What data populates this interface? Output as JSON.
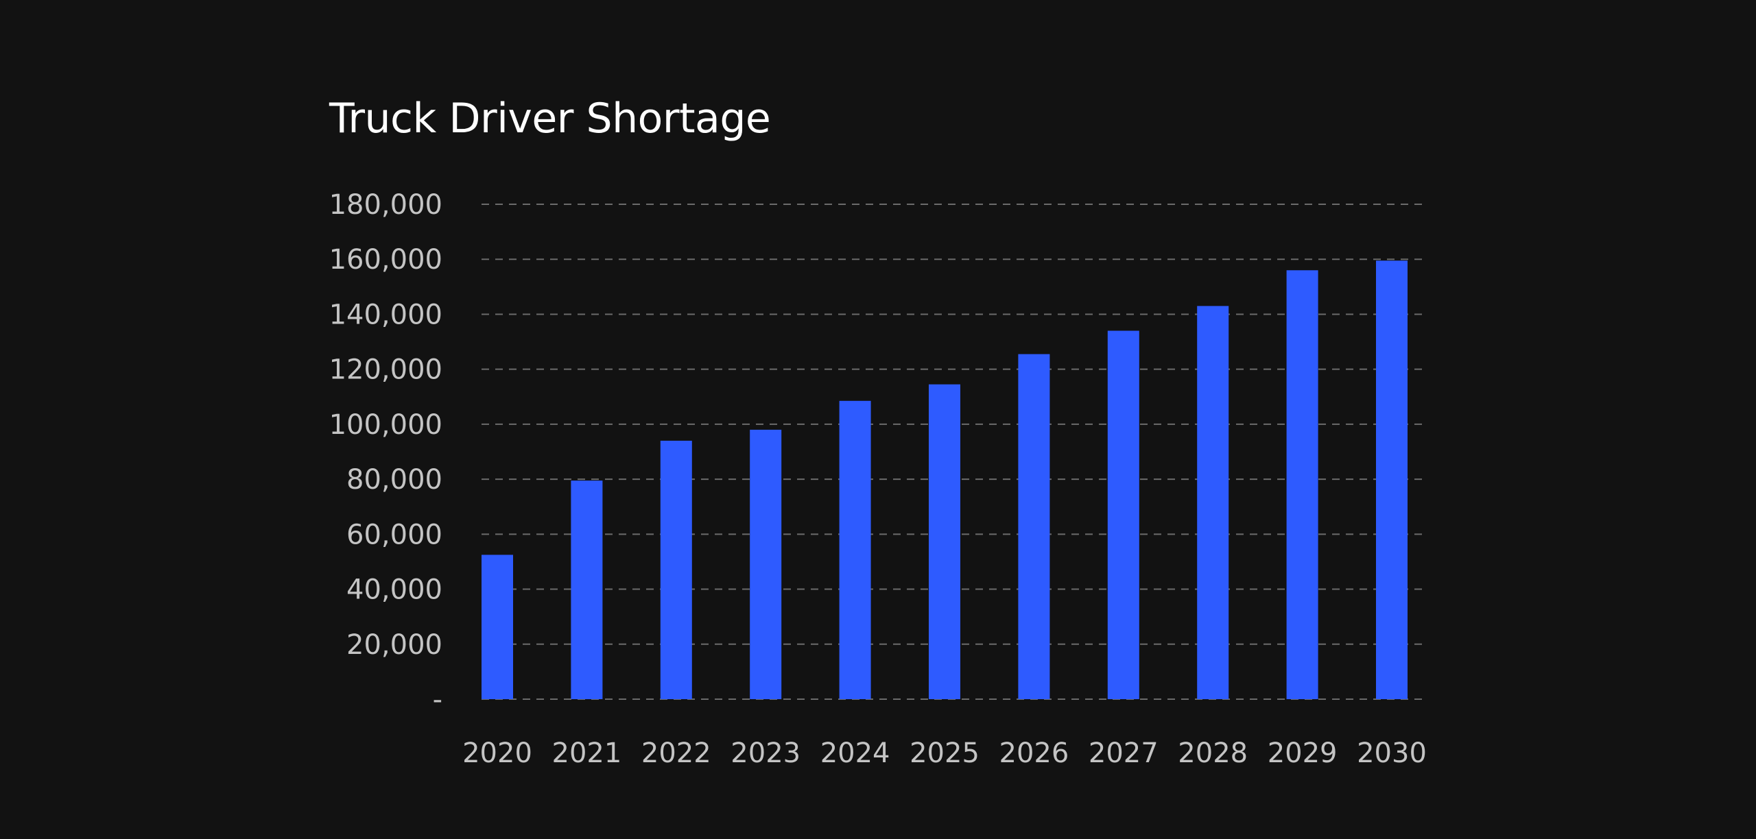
{
  "colors": {
    "background": "#121212",
    "bar": "#2e5bff",
    "title": "#ffffff",
    "tick_label": "#c4c4c4",
    "grid": "#6b6b6b"
  },
  "chart_data": {
    "type": "bar",
    "title": "Truck Driver Shortage",
    "xlabel": "",
    "ylabel": "",
    "categories": [
      "2020",
      "2021",
      "2022",
      "2023",
      "2024",
      "2025",
      "2026",
      "2027",
      "2028",
      "2029",
      "2030"
    ],
    "values": [
      52500,
      79500,
      94000,
      98000,
      108500,
      114500,
      125500,
      134000,
      143000,
      156000,
      159500
    ],
    "ylim": [
      0,
      180000
    ],
    "yticks": [
      0,
      20000,
      40000,
      60000,
      80000,
      100000,
      120000,
      140000,
      160000,
      180000
    ],
    "ytick_labels": [
      "-",
      "20,000",
      "40,000",
      "60,000",
      "80,000",
      "100,000",
      "120,000",
      "140,000",
      "160,000",
      "180,000"
    ],
    "grid": true,
    "grid_style": "dashed",
    "legend": "none"
  }
}
